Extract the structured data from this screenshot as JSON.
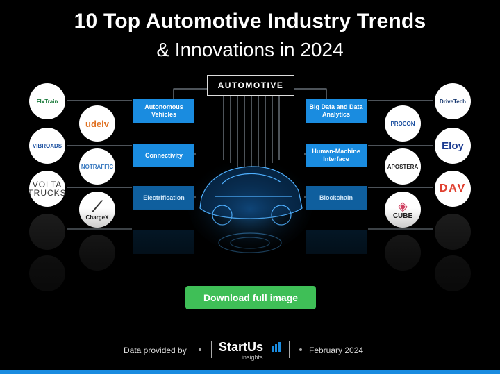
{
  "title_line1": "10 Top Automotive Industry Trends",
  "title_line2": "& Innovations in 2024",
  "center_label": "AUTOMOTIVE",
  "trends_left": [
    {
      "label": "Autonomous Vehicles"
    },
    {
      "label": "Connectivity"
    },
    {
      "label": "Electrification"
    },
    {
      "label": ""
    }
  ],
  "trends_right": [
    {
      "label": "Big Data and Data Analytics"
    },
    {
      "label": "Human-Machine Interface"
    },
    {
      "label": "Blockchain"
    },
    {
      "label": ""
    }
  ],
  "logos_left_outer": [
    "FlxTrain",
    "VIBROADS",
    "VOLTA TRUCKS",
    "",
    ""
  ],
  "logos_left_inner": [
    "udelv",
    "NOTRAFFIC",
    "ChargeX",
    ""
  ],
  "logos_right_inner": [
    "PROCON",
    "APOSTERA",
    "CUBE",
    ""
  ],
  "logos_right_outer": [
    "DriveTech",
    "Eloy",
    "DAV",
    "",
    ""
  ],
  "download_label": "Download full image",
  "footer": {
    "provided": "Data provided by",
    "brand": "StartUs",
    "brand_sub": "insights",
    "date": "February 2024"
  },
  "colors": {
    "accent": "#1a8ce0",
    "download": "#3fbf57",
    "background": "#000000"
  }
}
